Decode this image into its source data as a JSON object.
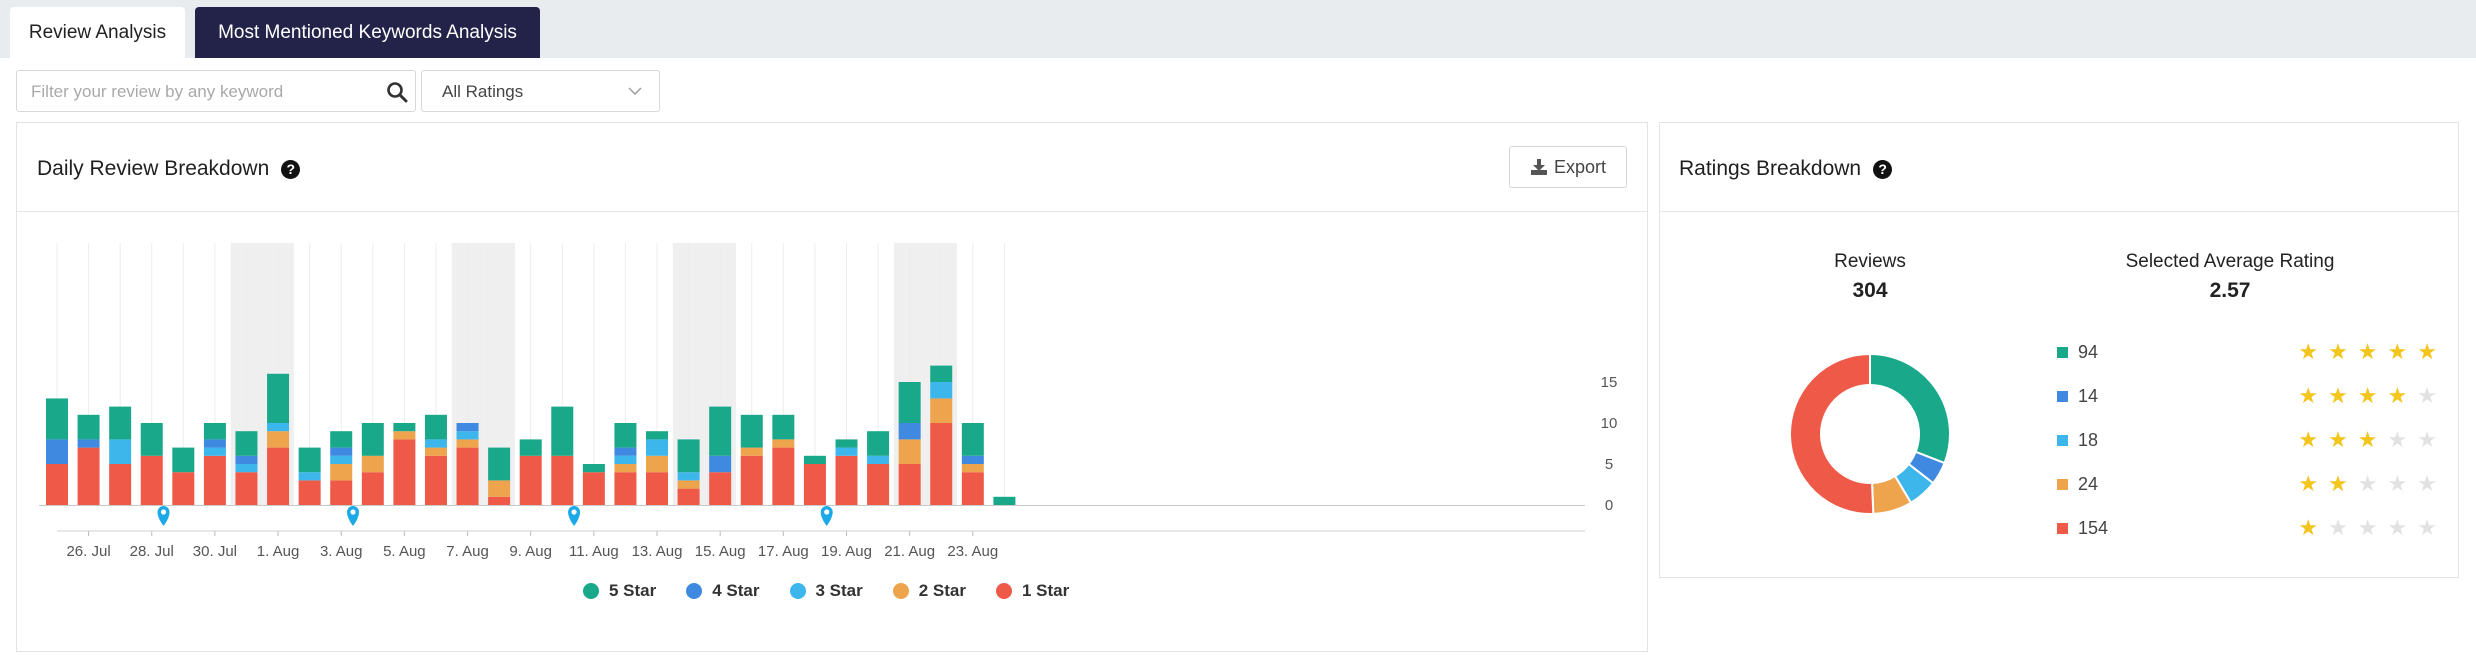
{
  "tabs": [
    {
      "label": "Review Analysis",
      "active": true
    },
    {
      "label": "Most Mentioned Keywords Analysis",
      "active": false
    }
  ],
  "filters": {
    "search_placeholder": "Filter your review by any keyword",
    "search_value": "",
    "rating_select": "All Ratings"
  },
  "daily": {
    "title": "Daily Review Breakdown",
    "help_icon": "question-circle-icon",
    "export_label": "Export"
  },
  "ratings": {
    "title": "Ratings Breakdown",
    "reviews_label": "Reviews",
    "reviews_value": "304",
    "avg_label": "Selected Average Rating",
    "avg_value": "2.57",
    "rows": [
      {
        "stars": 5,
        "count": "94",
        "color": "#1aa88a"
      },
      {
        "stars": 4,
        "count": "14",
        "color": "#3f8ae0"
      },
      {
        "stars": 3,
        "count": "18",
        "color": "#3db6ec"
      },
      {
        "stars": 2,
        "count": "24",
        "color": "#eda44d"
      },
      {
        "stars": 1,
        "count": "154",
        "color": "#ef5a48"
      }
    ],
    "star_color": "#f4c51c",
    "star_empty_color": "#e2e2e2"
  },
  "colors": {
    "five": "#1aa88a",
    "four": "#3f8ae0",
    "three": "#3db6ec",
    "two": "#eda44d",
    "one": "#ef5a48",
    "marker": "#1ba9e8",
    "tab_dark": "#23234a"
  },
  "chart_data": {
    "type": "bar",
    "stacked": true,
    "ylim": [
      0,
      20
    ],
    "yticks": [
      0,
      5,
      10,
      15
    ],
    "x_tick_labels": [
      "26. Jul",
      "28. Jul",
      "30. Jul",
      "1. Aug",
      "3. Aug",
      "5. Aug",
      "7. Aug",
      "9. Aug",
      "11. Aug",
      "13. Aug",
      "15. Aug",
      "17. Aug",
      "19. Aug",
      "21. Aug",
      "23. Aug"
    ],
    "categories": [
      "25 Jul",
      "26 Jul",
      "27 Jul",
      "28 Jul",
      "29 Jul",
      "30 Jul",
      "31 Jul",
      "1 Aug",
      "2 Aug",
      "3 Aug",
      "4 Aug",
      "5 Aug",
      "6 Aug",
      "7 Aug",
      "8 Aug",
      "9 Aug",
      "10 Aug",
      "11 Aug",
      "12 Aug",
      "13 Aug",
      "14 Aug",
      "15 Aug",
      "16 Aug",
      "17 Aug",
      "18 Aug",
      "19 Aug",
      "20 Aug",
      "21 Aug",
      "22 Aug",
      "23 Aug",
      "24 Aug"
    ],
    "series": [
      {
        "name": "1 Star",
        "values": [
          5,
          7,
          5,
          6,
          4,
          6,
          4,
          7,
          3,
          3,
          4,
          8,
          6,
          7,
          1,
          6,
          6,
          4,
          4,
          4,
          2,
          4,
          6,
          7,
          5,
          6,
          5,
          5,
          10,
          4,
          0
        ]
      },
      {
        "name": "2 Star",
        "values": [
          0,
          0,
          0,
          0,
          0,
          0,
          0,
          2,
          0,
          2,
          2,
          1,
          1,
          1,
          2,
          0,
          0,
          0,
          1,
          2,
          1,
          0,
          1,
          1,
          0,
          0,
          0,
          3,
          3,
          1,
          0
        ]
      },
      {
        "name": "3 Star",
        "values": [
          0,
          0,
          3,
          0,
          0,
          1,
          1,
          1,
          1,
          1,
          0,
          0,
          1,
          1,
          0,
          0,
          0,
          0,
          1,
          2,
          1,
          0,
          0,
          0,
          0,
          1,
          1,
          0,
          2,
          0,
          0
        ]
      },
      {
        "name": "4 Star",
        "values": [
          3,
          1,
          0,
          0,
          0,
          1,
          1,
          0,
          0,
          1,
          0,
          0,
          0,
          1,
          0,
          0,
          0,
          0,
          1,
          0,
          0,
          2,
          0,
          0,
          0,
          0,
          0,
          2,
          0,
          1,
          0
        ]
      },
      {
        "name": "5 Star",
        "values": [
          5,
          3,
          4,
          4,
          3,
          2,
          3,
          6,
          3,
          2,
          4,
          1,
          3,
          0,
          4,
          2,
          6,
          1,
          3,
          1,
          4,
          6,
          4,
          3,
          1,
          1,
          3,
          5,
          2,
          4,
          1
        ]
      }
    ],
    "marker_after_index": [
      3,
      9,
      16,
      24
    ],
    "weekend_shaded_indices": [
      6,
      7,
      13,
      14,
      20,
      21,
      27,
      28
    ],
    "legend": [
      "5 Star",
      "4 Star",
      "3 Star",
      "2 Star",
      "1 Star"
    ],
    "legend_position": "bottom",
    "grid": true
  }
}
